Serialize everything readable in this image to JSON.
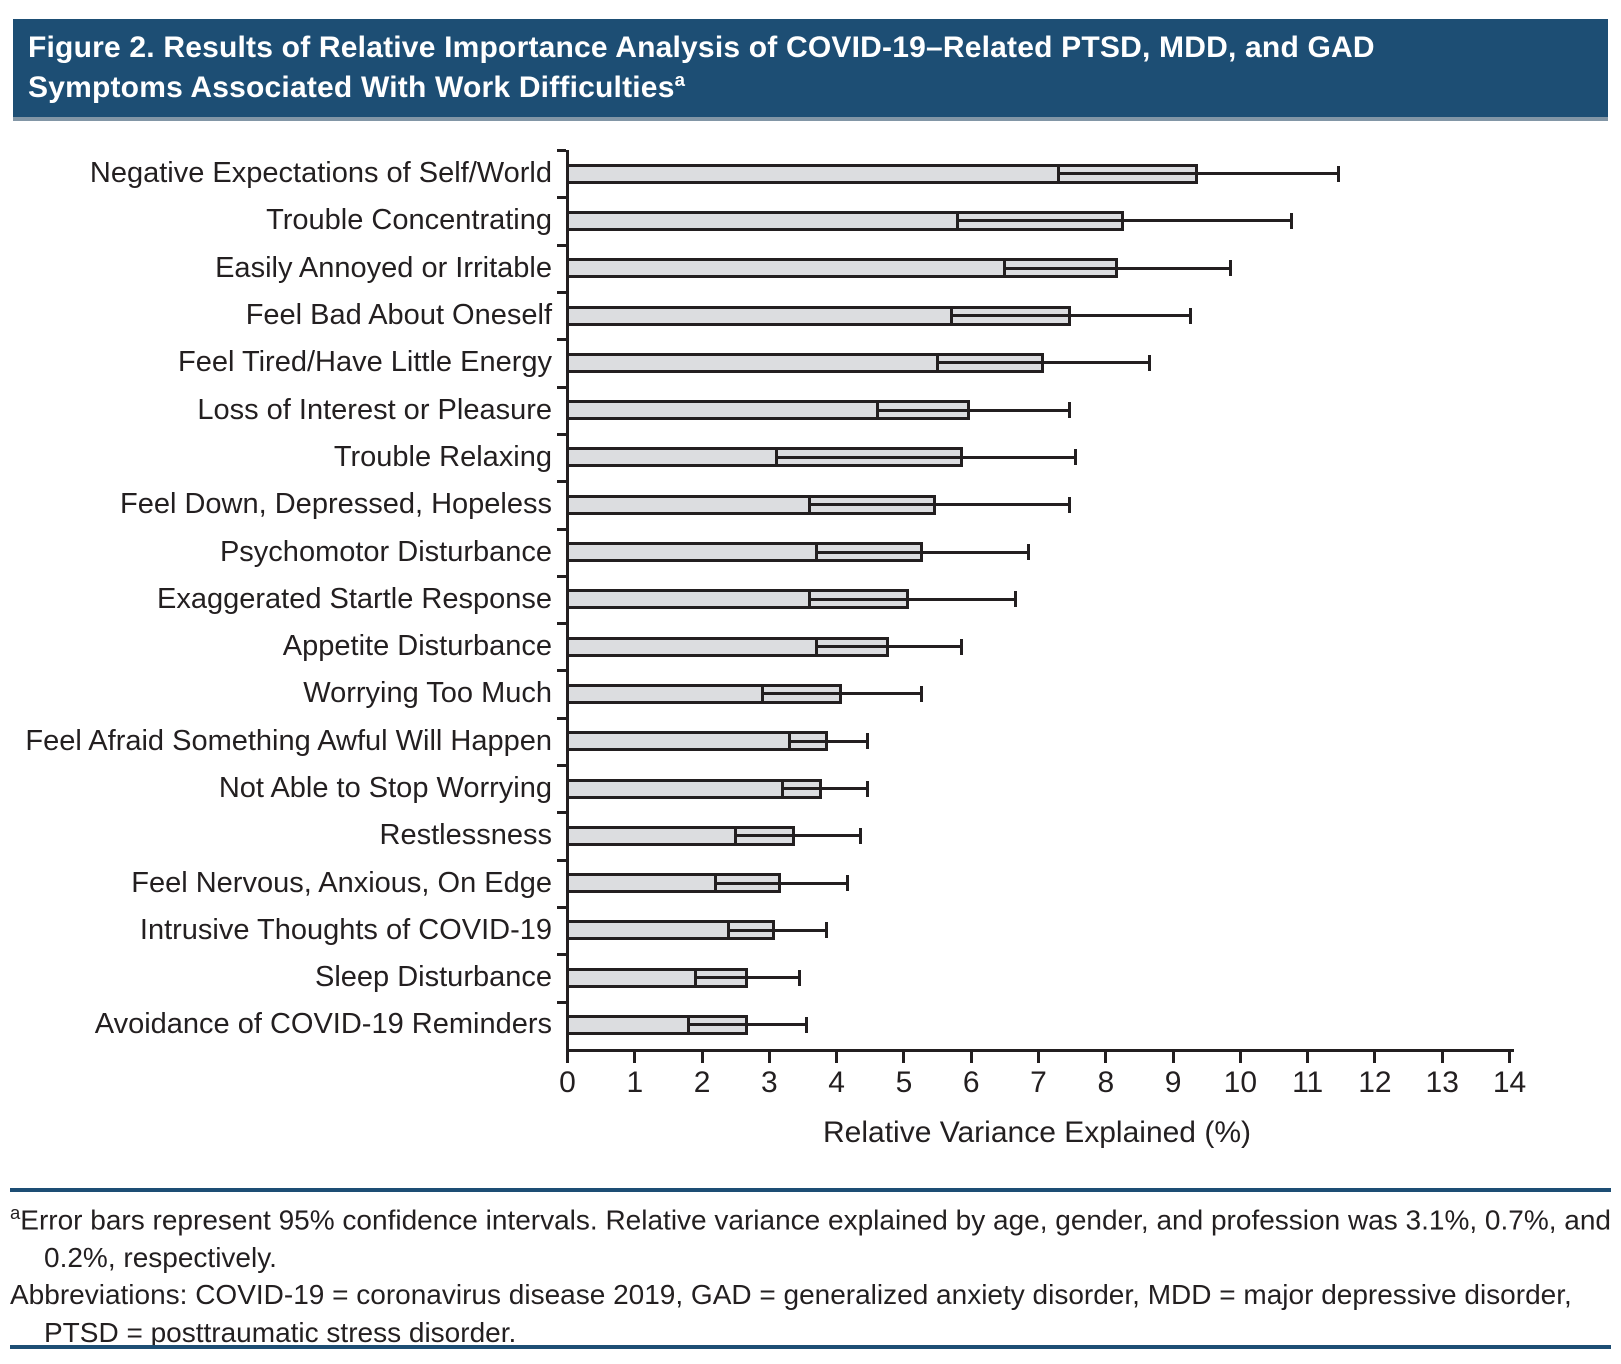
{
  "title": {
    "line1": "Figure 2. Results of Relative Importance Analysis of COVID-19–Related PTSD, MDD, and GAD",
    "line2": "Symptoms Associated With Work Difficulties",
    "superscript": "a"
  },
  "chart_data": {
    "type": "bar",
    "orientation": "horizontal",
    "title": "Figure 2. Results of Relative Importance Analysis of COVID-19–Related PTSD, MDD, and GAD Symptoms Associated With Work Difficulties",
    "categories": [
      "Negative Expectations of Self/World",
      "Trouble Concentrating",
      "Easily Annoyed or Irritable",
      "Feel Bad About Oneself",
      "Feel Tired/Have Little Energy",
      "Loss of Interest or Pleasure",
      "Trouble Relaxing",
      "Feel Down, Depressed, Hopeless",
      "Psychomotor Disturbance",
      "Exaggerated Startle Response",
      "Appetite Disturbance",
      "Worrying Too Much",
      "Feel Afraid Something Awful Will Happen",
      "Not Able to Stop Worrying",
      "Restlessness",
      "Feel Nervous, Anxious, On Edge",
      "Intrusive Thoughts of COVID-19",
      "Sleep Disturbance",
      "Avoidance of COVID-19 Reminders"
    ],
    "values": [
      9.4,
      8.3,
      8.2,
      7.5,
      7.1,
      6.0,
      5.9,
      5.5,
      5.3,
      5.1,
      4.8,
      4.1,
      3.9,
      3.8,
      3.4,
      3.2,
      3.1,
      2.7,
      2.7
    ],
    "ci_low": [
      7.3,
      5.8,
      6.5,
      5.7,
      5.5,
      4.6,
      3.1,
      3.6,
      3.7,
      3.6,
      3.7,
      2.9,
      3.3,
      3.2,
      2.5,
      2.2,
      2.4,
      1.9,
      1.8
    ],
    "ci_high": [
      11.5,
      10.8,
      9.9,
      9.3,
      8.7,
      7.5,
      7.6,
      7.5,
      6.9,
      6.7,
      5.9,
      5.3,
      4.5,
      4.5,
      4.4,
      4.2,
      3.9,
      3.5,
      3.6
    ],
    "xlabel": "Relative Variance Explained (%)",
    "xlim": [
      0,
      14
    ],
    "xticks": [
      0,
      1,
      2,
      3,
      4,
      5,
      6,
      7,
      8,
      9,
      10,
      11,
      12,
      13,
      14
    ],
    "error_bars": "95% confidence intervals",
    "grid": false,
    "legend": "none"
  },
  "footnotes": {
    "note_marker": "a",
    "note_text": "Error bars represent 95% confidence intervals. Relative variance explained by age, gender, and profession was 3.1%, 0.7%, and 0.2%, respectively.",
    "abbreviations": "Abbreviations: COVID-19 = coronavirus disease 2019, GAD = generalized anxiety disorder, MDD = major depressive disorder, PTSD = posttraumatic stress disorder."
  },
  "colors": {
    "banner_background": "#1d4e74",
    "banner_text": "#ffffff",
    "banner_edge": "#8296a6",
    "bar_fill": "#dcdde0",
    "ink": "#231f20",
    "rule": "#1d4e74",
    "background": "#ffffff"
  }
}
